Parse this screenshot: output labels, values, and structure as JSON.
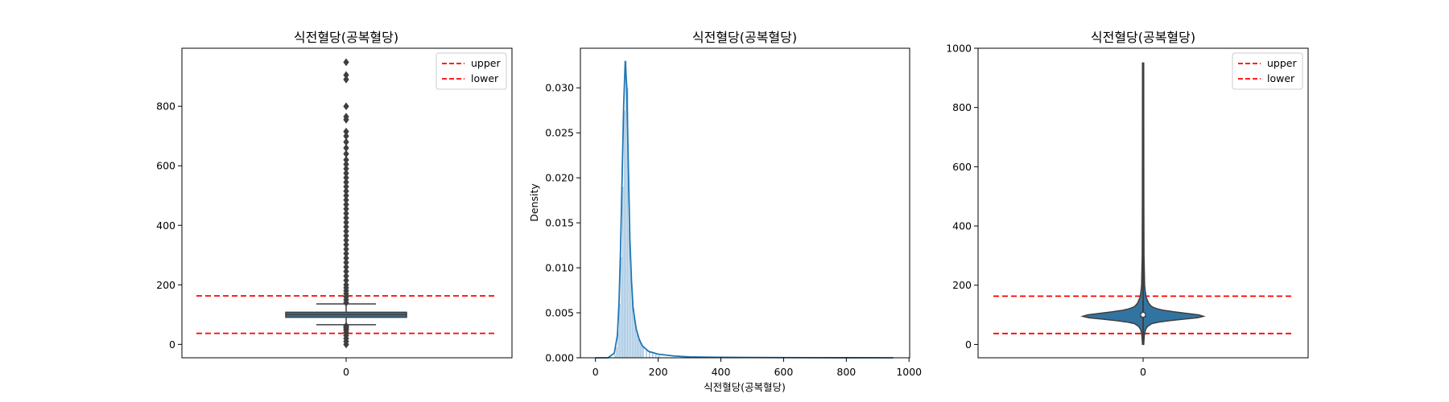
{
  "colors": {
    "threshold_line": "#ff0000",
    "box_fill": "#3a6f94",
    "box_edge": "#3f3f3f",
    "kde_line": "#1f77b4",
    "hist_fill": "#a6c8e2",
    "violin_fill": "#3274a1",
    "axis": "#000000"
  },
  "chart_data": [
    {
      "type": "boxplot",
      "title": "식전혈당(공복혈당)",
      "xlabel": "",
      "ylabel": "",
      "categories": [
        "0"
      ],
      "ylim": [
        -45,
        995
      ],
      "yticks": [
        0,
        200,
        400,
        600,
        800
      ],
      "box": {
        "q1": 91,
        "median": 100,
        "q3": 108,
        "whisker_low": 66,
        "whisker_high": 136
      },
      "outliers": [
        0,
        10,
        20,
        30,
        40,
        48,
        52,
        56,
        60,
        62,
        140,
        150,
        160,
        170,
        180,
        190,
        200,
        215,
        230,
        245,
        260,
        275,
        290,
        305,
        320,
        335,
        350,
        365,
        380,
        395,
        410,
        425,
        440,
        455,
        470,
        485,
        500,
        515,
        530,
        545,
        560,
        575,
        590,
        605,
        620,
        640,
        660,
        680,
        700,
        715,
        755,
        765,
        800,
        890,
        905,
        948
      ],
      "hlines": [
        {
          "name": "upper",
          "y": 163
        },
        {
          "name": "lower",
          "y": 37
        }
      ],
      "legend": {
        "position": "upper right",
        "entries": [
          "upper",
          "lower"
        ]
      }
    },
    {
      "type": "histogram+kde",
      "title": "식전혈당(공복혈당)",
      "xlabel": "식전혈당(공복혈당)",
      "ylabel": "Density",
      "xlim": [
        -48,
        1002
      ],
      "ylim": [
        0,
        0.0344
      ],
      "xticks": [
        0,
        200,
        400,
        600,
        800,
        1000
      ],
      "yticks": [
        0.0,
        0.005,
        0.01,
        0.015,
        0.02,
        0.025,
        0.03
      ],
      "ytick_labels": [
        "0.000",
        "0.005",
        "0.010",
        "0.015",
        "0.020",
        "0.025",
        "0.030"
      ],
      "kde": {
        "x": [
          0,
          40,
          60,
          70,
          75,
          80,
          85,
          90,
          95,
          100,
          105,
          110,
          115,
          120,
          130,
          140,
          150,
          170,
          200,
          250,
          300,
          400,
          500,
          600,
          700,
          800,
          950
        ],
        "y": [
          0,
          0,
          0.0005,
          0.0025,
          0.006,
          0.012,
          0.02,
          0.028,
          0.033,
          0.03,
          0.021,
          0.013,
          0.0085,
          0.0055,
          0.0032,
          0.002,
          0.0013,
          0.0007,
          0.0004,
          0.0002,
          0.0001,
          5e-05,
          3e-05,
          2e-05,
          1e-05,
          5e-06,
          0
        ]
      },
      "hist": {
        "bin_width": 5,
        "bins": [
          {
            "x": 60,
            "density": 0.0004
          },
          {
            "x": 65,
            "density": 0.0012
          },
          {
            "x": 70,
            "density": 0.003
          },
          {
            "x": 75,
            "density": 0.006
          },
          {
            "x": 80,
            "density": 0.0112
          },
          {
            "x": 85,
            "density": 0.019
          },
          {
            "x": 90,
            "density": 0.0275
          },
          {
            "x": 95,
            "density": 0.033
          },
          {
            "x": 100,
            "density": 0.03
          },
          {
            "x": 105,
            "density": 0.0145
          },
          {
            "x": 110,
            "density": 0.0105
          },
          {
            "x": 115,
            "density": 0.0075
          },
          {
            "x": 120,
            "density": 0.0055
          },
          {
            "x": 125,
            "density": 0.004
          },
          {
            "x": 130,
            "density": 0.003
          },
          {
            "x": 135,
            "density": 0.0024
          },
          {
            "x": 140,
            "density": 0.002
          },
          {
            "x": 145,
            "density": 0.0016
          },
          {
            "x": 150,
            "density": 0.0013
          },
          {
            "x": 160,
            "density": 0.001
          },
          {
            "x": 170,
            "density": 0.0007
          },
          {
            "x": 180,
            "density": 0.0005
          },
          {
            "x": 190,
            "density": 0.0004
          },
          {
            "x": 200,
            "density": 0.0003
          }
        ]
      }
    },
    {
      "type": "violin",
      "title": "식전혈당(공복혈당)",
      "xlabel": "",
      "ylabel": "",
      "categories": [
        "0"
      ],
      "ylim": [
        -45,
        1000
      ],
      "yticks": [
        0,
        200,
        400,
        600,
        800,
        1000
      ],
      "violin": {
        "y": [
          0,
          30,
          50,
          60,
          70,
          75,
          80,
          85,
          90,
          95,
          100,
          105,
          110,
          115,
          120,
          125,
          130,
          140,
          150,
          160,
          180,
          200,
          300,
          500,
          700,
          950
        ],
        "rel_width": [
          0.01,
          0.02,
          0.04,
          0.07,
          0.14,
          0.25,
          0.42,
          0.65,
          0.9,
          1.0,
          0.92,
          0.72,
          0.52,
          0.35,
          0.24,
          0.17,
          0.13,
          0.09,
          0.07,
          0.05,
          0.035,
          0.025,
          0.015,
          0.012,
          0.011,
          0.01
        ]
      },
      "inner_box": {
        "q1": 91,
        "median": 100,
        "q3": 108,
        "whisker_low": 0,
        "whisker_high": 950
      },
      "hlines": [
        {
          "name": "upper",
          "y": 163
        },
        {
          "name": "lower",
          "y": 37
        }
      ],
      "legend": {
        "position": "upper right",
        "entries": [
          "upper",
          "lower"
        ]
      }
    }
  ]
}
